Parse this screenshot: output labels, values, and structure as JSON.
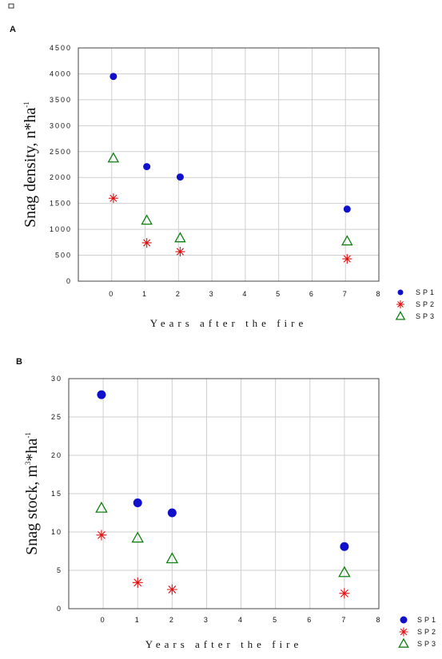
{
  "chart_data": [
    {
      "panel": "A",
      "type": "scatter",
      "xlabel": "Years after the fire",
      "ylabel_main": "Snag density, n*ha",
      "ylabel_sup": "-1",
      "xlim": [
        -1,
        8
      ],
      "ylim": [
        0,
        4500
      ],
      "x_ticks": [
        0,
        1,
        2,
        3,
        4,
        5,
        6,
        7,
        8
      ],
      "y_ticks": [
        0,
        500,
        1000,
        1500,
        2000,
        2500,
        3000,
        3500,
        4000,
        4500
      ],
      "y_tick_labels": [
        "0",
        "500",
        "1000",
        "1500",
        "2000",
        "2500",
        "3000",
        "3500",
        "4000",
        "4500"
      ],
      "grid": true,
      "legend": "right",
      "series": [
        {
          "name": "SP1",
          "marker": "circle",
          "color": "#1010cc",
          "x": [
            0.05,
            1.05,
            2.05,
            7.05
          ],
          "y": [
            3950,
            2210,
            2010,
            1390
          ]
        },
        {
          "name": "SP2",
          "marker": "star",
          "color": "#e01010",
          "x": [
            0.05,
            1.05,
            2.05,
            7.05
          ],
          "y": [
            1600,
            740,
            570,
            430
          ]
        },
        {
          "name": "SP3",
          "marker": "triangle",
          "color": "#108010",
          "x": [
            0.05,
            1.05,
            2.05,
            7.05
          ],
          "y": [
            2370,
            1170,
            830,
            770
          ]
        }
      ]
    },
    {
      "panel": "B",
      "type": "scatter",
      "xlabel": "Years after the fire",
      "ylabel_main": "Snag stock, m",
      "ylabel_sup1": "3",
      "ylabel_mid": "*ha",
      "ylabel_sup2": "-1",
      "xlim": [
        -1,
        8
      ],
      "ylim": [
        0,
        30
      ],
      "x_ticks": [
        0,
        1,
        2,
        3,
        4,
        5,
        6,
        7,
        8
      ],
      "y_ticks": [
        0,
        5,
        10,
        15,
        20,
        25,
        30
      ],
      "y_tick_labels": [
        "0",
        "5",
        "10",
        "15",
        "20",
        "25",
        "30"
      ],
      "grid": true,
      "legend": "right",
      "series": [
        {
          "name": "SP1",
          "marker": "circle",
          "color": "#1010cc",
          "x": [
            -0.05,
            1.0,
            2.0,
            7.0
          ],
          "y": [
            27.9,
            13.8,
            12.5,
            8.1
          ]
        },
        {
          "name": "SP2",
          "marker": "star",
          "color": "#e01010",
          "x": [
            -0.05,
            1.0,
            2.0,
            7.0
          ],
          "y": [
            9.6,
            3.4,
            2.5,
            2.0
          ]
        },
        {
          "name": "SP3",
          "marker": "triangle",
          "color": "#108010",
          "x": [
            -0.05,
            1.0,
            2.0,
            7.0
          ],
          "y": [
            13.1,
            9.2,
            6.5,
            4.7
          ]
        }
      ]
    }
  ],
  "legend_labels": [
    "SP1",
    "SP2",
    "SP3"
  ],
  "colors": {
    "sp1": "#1010cc",
    "sp2": "#e01010",
    "sp3": "#108010",
    "grid": "#cfcfcf",
    "axis": "#444444"
  }
}
